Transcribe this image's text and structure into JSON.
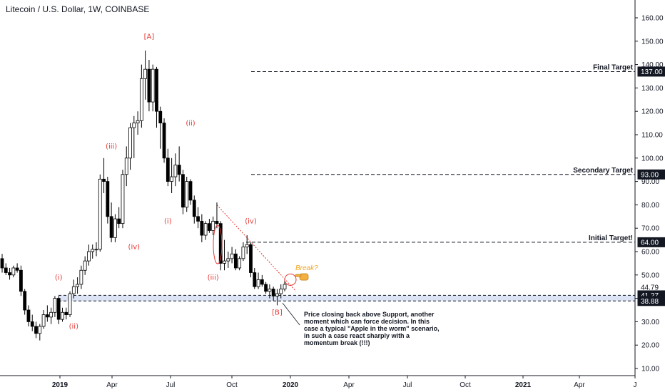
{
  "header": {
    "title": "Litecoin / U.S. Dollar, 1W, COINBASE"
  },
  "chart_data": {
    "type": "candlestick",
    "title": "Litecoin / U.S. Dollar, 1W, COINBASE",
    "ylim": [
      5,
      167
    ],
    "yticks": [
      10,
      20,
      30,
      40,
      50,
      60,
      70,
      80,
      90,
      100,
      110,
      120,
      130,
      140,
      150,
      160
    ],
    "x_ticks": [
      {
        "label": "2019",
        "bold": true
      },
      {
        "label": "Apr",
        "bold": false
      },
      {
        "label": "Jul",
        "bold": false
      },
      {
        "label": "Oct",
        "bold": false
      },
      {
        "label": "2020",
        "bold": true
      },
      {
        "label": "Apr",
        "bold": false
      },
      {
        "label": "Jul",
        "bold": false
      },
      {
        "label": "Oct",
        "bold": false
      },
      {
        "label": "2021",
        "bold": true
      },
      {
        "label": "Apr",
        "bold": false
      },
      {
        "label": "J",
        "bold": false
      }
    ],
    "candles": [
      [
        57,
        59,
        51,
        53
      ],
      [
        53,
        55,
        50,
        51
      ],
      [
        51,
        53,
        48,
        50
      ],
      [
        50,
        54,
        49,
        53
      ],
      [
        53,
        55,
        51,
        52
      ],
      [
        52,
        54,
        41,
        43
      ],
      [
        43,
        44,
        33,
        35
      ],
      [
        35,
        37,
        28,
        30
      ],
      [
        30,
        33,
        26,
        28
      ],
      [
        28,
        30,
        23,
        25
      ],
      [
        25,
        29,
        22,
        28
      ],
      [
        28,
        35,
        27,
        33
      ],
      [
        33,
        37,
        30,
        32
      ],
      [
        32,
        36,
        29,
        34
      ],
      [
        34,
        41,
        32,
        40
      ],
      [
        40,
        41,
        29,
        31
      ],
      [
        31,
        36,
        30,
        34
      ],
      [
        34,
        36,
        31,
        33
      ],
      [
        33,
        43,
        32,
        42
      ],
      [
        42,
        48,
        40,
        45
      ],
      [
        45,
        49,
        42,
        46
      ],
      [
        46,
        54,
        44,
        52
      ],
      [
        52,
        58,
        50,
        56
      ],
      [
        56,
        63,
        54,
        60
      ],
      [
        60,
        63,
        57,
        61
      ],
      [
        61,
        64,
        58,
        61
      ],
      [
        61,
        93,
        60,
        91
      ],
      [
        91,
        100,
        85,
        90
      ],
      [
        90,
        92,
        72,
        75
      ],
      [
        75,
        81,
        64,
        66
      ],
      [
        66,
        76,
        64,
        74
      ],
      [
        74,
        79,
        70,
        72
      ],
      [
        72,
        95,
        70,
        93
      ],
      [
        93,
        105,
        88,
        100
      ],
      [
        100,
        115,
        95,
        113
      ],
      [
        113,
        118,
        100,
        115
      ],
      [
        115,
        120,
        110,
        116
      ],
      [
        116,
        140,
        113,
        134
      ],
      [
        134,
        146,
        125,
        138
      ],
      [
        138,
        142,
        120,
        124
      ],
      [
        124,
        140,
        120,
        138
      ],
      [
        138,
        139,
        113,
        120
      ],
      [
        120,
        122,
        104,
        115
      ],
      [
        115,
        117,
        98,
        100
      ],
      [
        100,
        104,
        88,
        90
      ],
      [
        90,
        100,
        85,
        92
      ],
      [
        92,
        102,
        88,
        97
      ],
      [
        97,
        105,
        90,
        93
      ],
      [
        93,
        95,
        76,
        79
      ],
      [
        79,
        92,
        77,
        90
      ],
      [
        90,
        91,
        80,
        82
      ],
      [
        82,
        84,
        72,
        75
      ],
      [
        75,
        79,
        70,
        73
      ],
      [
        73,
        76,
        64,
        67
      ],
      [
        67,
        73,
        65,
        72
      ],
      [
        72,
        74,
        68,
        69
      ],
      [
        69,
        75,
        67,
        73
      ],
      [
        73,
        81,
        70,
        72
      ],
      [
        72,
        73,
        52,
        55
      ],
      [
        55,
        65,
        52,
        56
      ],
      [
        56,
        60,
        53,
        57
      ],
      [
        57,
        62,
        55,
        59
      ],
      [
        59,
        61,
        52,
        53
      ],
      [
        53,
        58,
        52,
        57
      ],
      [
        57,
        64,
        56,
        62
      ],
      [
        62,
        67,
        59,
        63
      ],
      [
        63,
        64,
        49,
        51
      ],
      [
        51,
        53,
        44,
        45
      ],
      [
        45,
        51,
        44,
        48
      ],
      [
        48,
        50,
        45,
        46
      ],
      [
        46,
        47,
        42,
        43
      ],
      [
        43,
        46,
        40,
        44
      ],
      [
        44,
        45,
        39,
        41
      ],
      [
        41,
        44,
        37,
        42
      ],
      [
        42,
        46,
        40,
        44
      ],
      [
        44,
        48,
        43,
        46
      ]
    ],
    "support_zone": {
      "low": 38.88,
      "high": 41.27
    },
    "price_labels": [
      {
        "value": 137.0,
        "label": "137.00",
        "style": "dark"
      },
      {
        "value": 93.0,
        "label": "93.00",
        "style": "dark"
      },
      {
        "value": 64.0,
        "label": "64.00",
        "style": "dark"
      },
      {
        "value": 44.79,
        "label": "44.79",
        "style": "light"
      },
      {
        "value": 41.27,
        "label": "41.27",
        "style": "dark"
      },
      {
        "value": 38.88,
        "label": "38.88",
        "style": "dark"
      }
    ],
    "targets": [
      {
        "value": 137.0,
        "text": "Final Target"
      },
      {
        "value": 93.0,
        "text": "Secondary Target"
      },
      {
        "value": 64.0,
        "text": "Initial Target!"
      }
    ],
    "wave_labels": [
      {
        "text": "[A]",
        "candle": 39,
        "price": 151
      },
      {
        "text": "[B]",
        "candle": 73,
        "price": 33
      },
      {
        "text": "(i)",
        "candle": 15,
        "price": 48
      },
      {
        "text": "(ii)",
        "candle": 19,
        "price": 27
      },
      {
        "text": "(iii)",
        "candle": 29,
        "price": 104
      },
      {
        "text": "(iv)",
        "candle": 35,
        "price": 61
      },
      {
        "text": "(i)",
        "candle": 44,
        "price": 72
      },
      {
        "text": "(ii)",
        "candle": 50,
        "price": 114
      },
      {
        "text": "(iii)",
        "candle": 56,
        "price": 48
      },
      {
        "text": "(iv)",
        "candle": 66,
        "price": 72
      }
    ],
    "trendline": {
      "from_candle": 57,
      "from_price": 80,
      "to_candle": 78,
      "to_price": 43
    },
    "annotations": {
      "break_text": "Break?",
      "note": "Price closing back above Support, another moment which can force decision. In this case a typical \"Apple in the worm\" scenario, in such a case react sharply with a momentum break (!!!)"
    },
    "colors": {
      "bull": "#ffffff",
      "bear": "#000000",
      "accent": "#e53935",
      "zone": "#dbe3f5"
    }
  }
}
